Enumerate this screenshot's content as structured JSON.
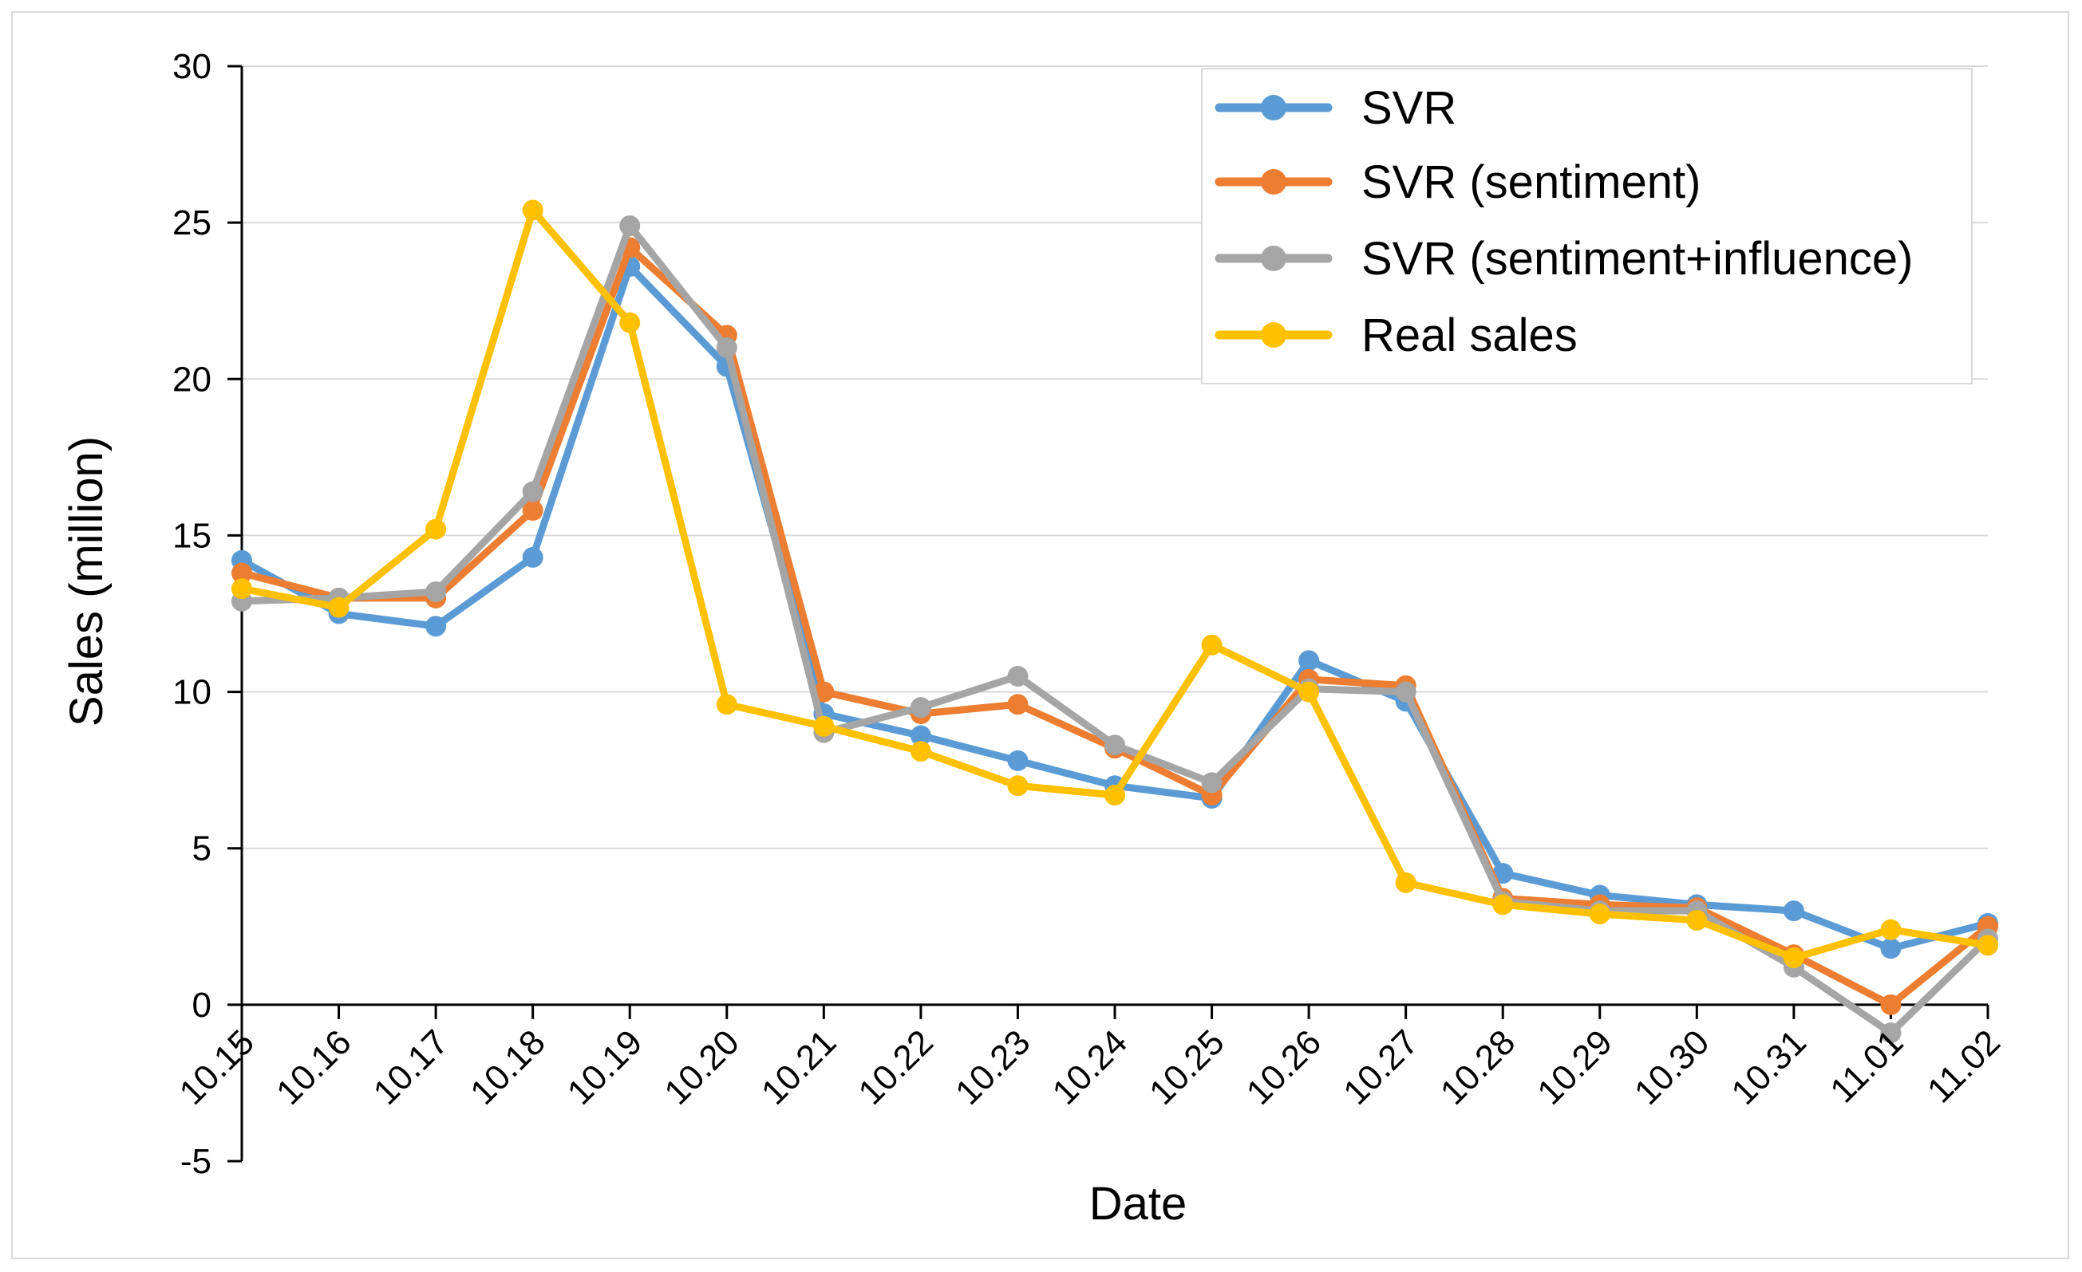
{
  "chart_data": {
    "type": "line",
    "title": "",
    "xlabel": "Date",
    "ylabel": "Sales (million)",
    "ylim": [
      -5,
      30
    ],
    "yticks": [
      -5,
      0,
      5,
      10,
      15,
      20,
      25,
      30
    ],
    "grid": "horizontal",
    "legend_position": "top-right",
    "categories": [
      "10.15",
      "10.16",
      "10.17",
      "10.18",
      "10.19",
      "10.20",
      "10.21",
      "10.22",
      "10.23",
      "10.24",
      "10.25",
      "10.26",
      "10.27",
      "10.28",
      "10.29",
      "10.30",
      "10.31",
      "11.01",
      "11.02"
    ],
    "series": [
      {
        "name": "SVR",
        "color": "#5b9bd5",
        "values": [
          14.2,
          12.5,
          12.1,
          14.3,
          23.6,
          20.4,
          9.3,
          8.6,
          7.8,
          7.0,
          6.6,
          11.0,
          9.7,
          4.2,
          3.5,
          3.2,
          3.0,
          1.8,
          2.6
        ]
      },
      {
        "name": "SVR (sentiment)",
        "color": "#ed7d31",
        "values": [
          13.8,
          13.0,
          13.0,
          15.8,
          24.2,
          21.4,
          10.0,
          9.3,
          9.6,
          8.2,
          6.7,
          10.4,
          10.2,
          3.4,
          3.2,
          3.1,
          1.6,
          0.0,
          2.5
        ]
      },
      {
        "name": "SVR (sentiment+influence)",
        "color": "#a5a5a5",
        "values": [
          12.9,
          13.0,
          13.2,
          16.4,
          24.9,
          21.0,
          8.7,
          9.5,
          10.5,
          8.3,
          7.1,
          10.1,
          10.0,
          3.3,
          3.0,
          3.0,
          1.2,
          -0.9,
          2.1
        ]
      },
      {
        "name": "Real sales",
        "color": "#ffc000",
        "values": [
          13.3,
          12.7,
          15.2,
          25.4,
          21.8,
          9.6,
          8.9,
          8.1,
          7.0,
          6.7,
          11.5,
          10.0,
          3.9,
          3.2,
          2.9,
          2.7,
          1.5,
          2.4,
          1.9
        ]
      }
    ]
  }
}
